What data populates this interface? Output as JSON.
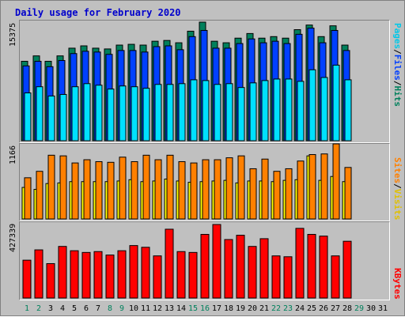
{
  "title": "Daily usage for February 2020",
  "colors": {
    "hits": "#00805c",
    "files": "#0040ff",
    "pages": "#00e0ff",
    "visits": "#ffff00",
    "sites": "#ff8000",
    "kbytes": "#ff0000",
    "weekend_label": "#00805c",
    "weekday_label": "#000000"
  },
  "panels": {
    "top": {
      "max_label": "15375",
      "legend": [
        "Pages",
        "Files",
        "Hits"
      ],
      "separator": "/"
    },
    "middle": {
      "max_label": "1166",
      "legend": [
        "Sites",
        "Visits"
      ],
      "separator": "/"
    },
    "bottom": {
      "max_label": "427339",
      "legend": [
        "KBytes"
      ],
      "separator": "/"
    }
  },
  "chart_data": {
    "type": "bar",
    "title": "Daily usage for February 2020",
    "categories": [
      "1",
      "2",
      "3",
      "4",
      "5",
      "6",
      "7",
      "8",
      "9",
      "10",
      "11",
      "12",
      "13",
      "14",
      "15",
      "16",
      "17",
      "18",
      "19",
      "20",
      "21",
      "22",
      "23",
      "24",
      "25",
      "26",
      "27",
      "28",
      "29",
      "30",
      "31"
    ],
    "weekend_days": [
      "1",
      "2",
      "8",
      "9",
      "15",
      "16",
      "22",
      "23",
      "29"
    ],
    "series": [
      {
        "name": "Hits",
        "panel": "top",
        "values": [
          10300,
          11000,
          10300,
          11000,
          12000,
          12300,
          12000,
          11900,
          12400,
          12500,
          12400,
          12900,
          13000,
          12700,
          14200,
          15375,
          12900,
          12700,
          13300,
          13900,
          13300,
          13500,
          13300,
          14400,
          15000,
          13500,
          14900,
          12400,
          null,
          null,
          null
        ]
      },
      {
        "name": "Files",
        "panel": "top",
        "values": [
          9700,
          10300,
          9600,
          10400,
          11300,
          11600,
          11500,
          11200,
          11700,
          11700,
          11500,
          12200,
          12300,
          11800,
          13500,
          14300,
          12000,
          12000,
          12600,
          13200,
          12700,
          12900,
          12600,
          13800,
          14600,
          12700,
          14300,
          11700,
          null,
          null,
          null
        ]
      },
      {
        "name": "Pages",
        "panel": "top",
        "values": [
          6200,
          7000,
          5800,
          6000,
          7000,
          7400,
          7200,
          6700,
          7100,
          7000,
          6800,
          7300,
          7300,
          7400,
          7900,
          7800,
          7300,
          7400,
          6900,
          7500,
          7800,
          8000,
          8000,
          7700,
          9200,
          8200,
          9800,
          7900,
          null,
          null,
          null
        ]
      },
      {
        "name": "Visits",
        "panel": "middle",
        "values": [
          490,
          460,
          550,
          560,
          580,
          580,
          580,
          580,
          590,
          610,
          580,
          590,
          620,
          590,
          570,
          580,
          590,
          600,
          560,
          590,
          590,
          580,
          600,
          610,
          980,
          600,
          660,
          580,
          null,
          null,
          null
        ]
      },
      {
        "name": "Sites",
        "panel": "middle",
        "values": [
          640,
          740,
          990,
          980,
          870,
          920,
          890,
          880,
          960,
          890,
          990,
          920,
          990,
          890,
          870,
          920,
          920,
          950,
          980,
          780,
          930,
          740,
          780,
          900,
          1000,
          1010,
          1166,
          800,
          null,
          null,
          null
        ]
      },
      {
        "name": "KBytes",
        "panel": "bottom",
        "values": [
          220000,
          280000,
          200000,
          300000,
          275000,
          265000,
          270000,
          250000,
          275000,
          305000,
          295000,
          245000,
          400000,
          270000,
          265000,
          370000,
          427339,
          340000,
          365000,
          300000,
          345000,
          245000,
          240000,
          405000,
          370000,
          360000,
          245000,
          330000,
          null,
          null,
          null
        ]
      }
    ],
    "ylim_top": [
      0,
      15375
    ],
    "ylim_middle": [
      0,
      1166
    ],
    "ylim_bottom": [
      0,
      427339
    ]
  }
}
